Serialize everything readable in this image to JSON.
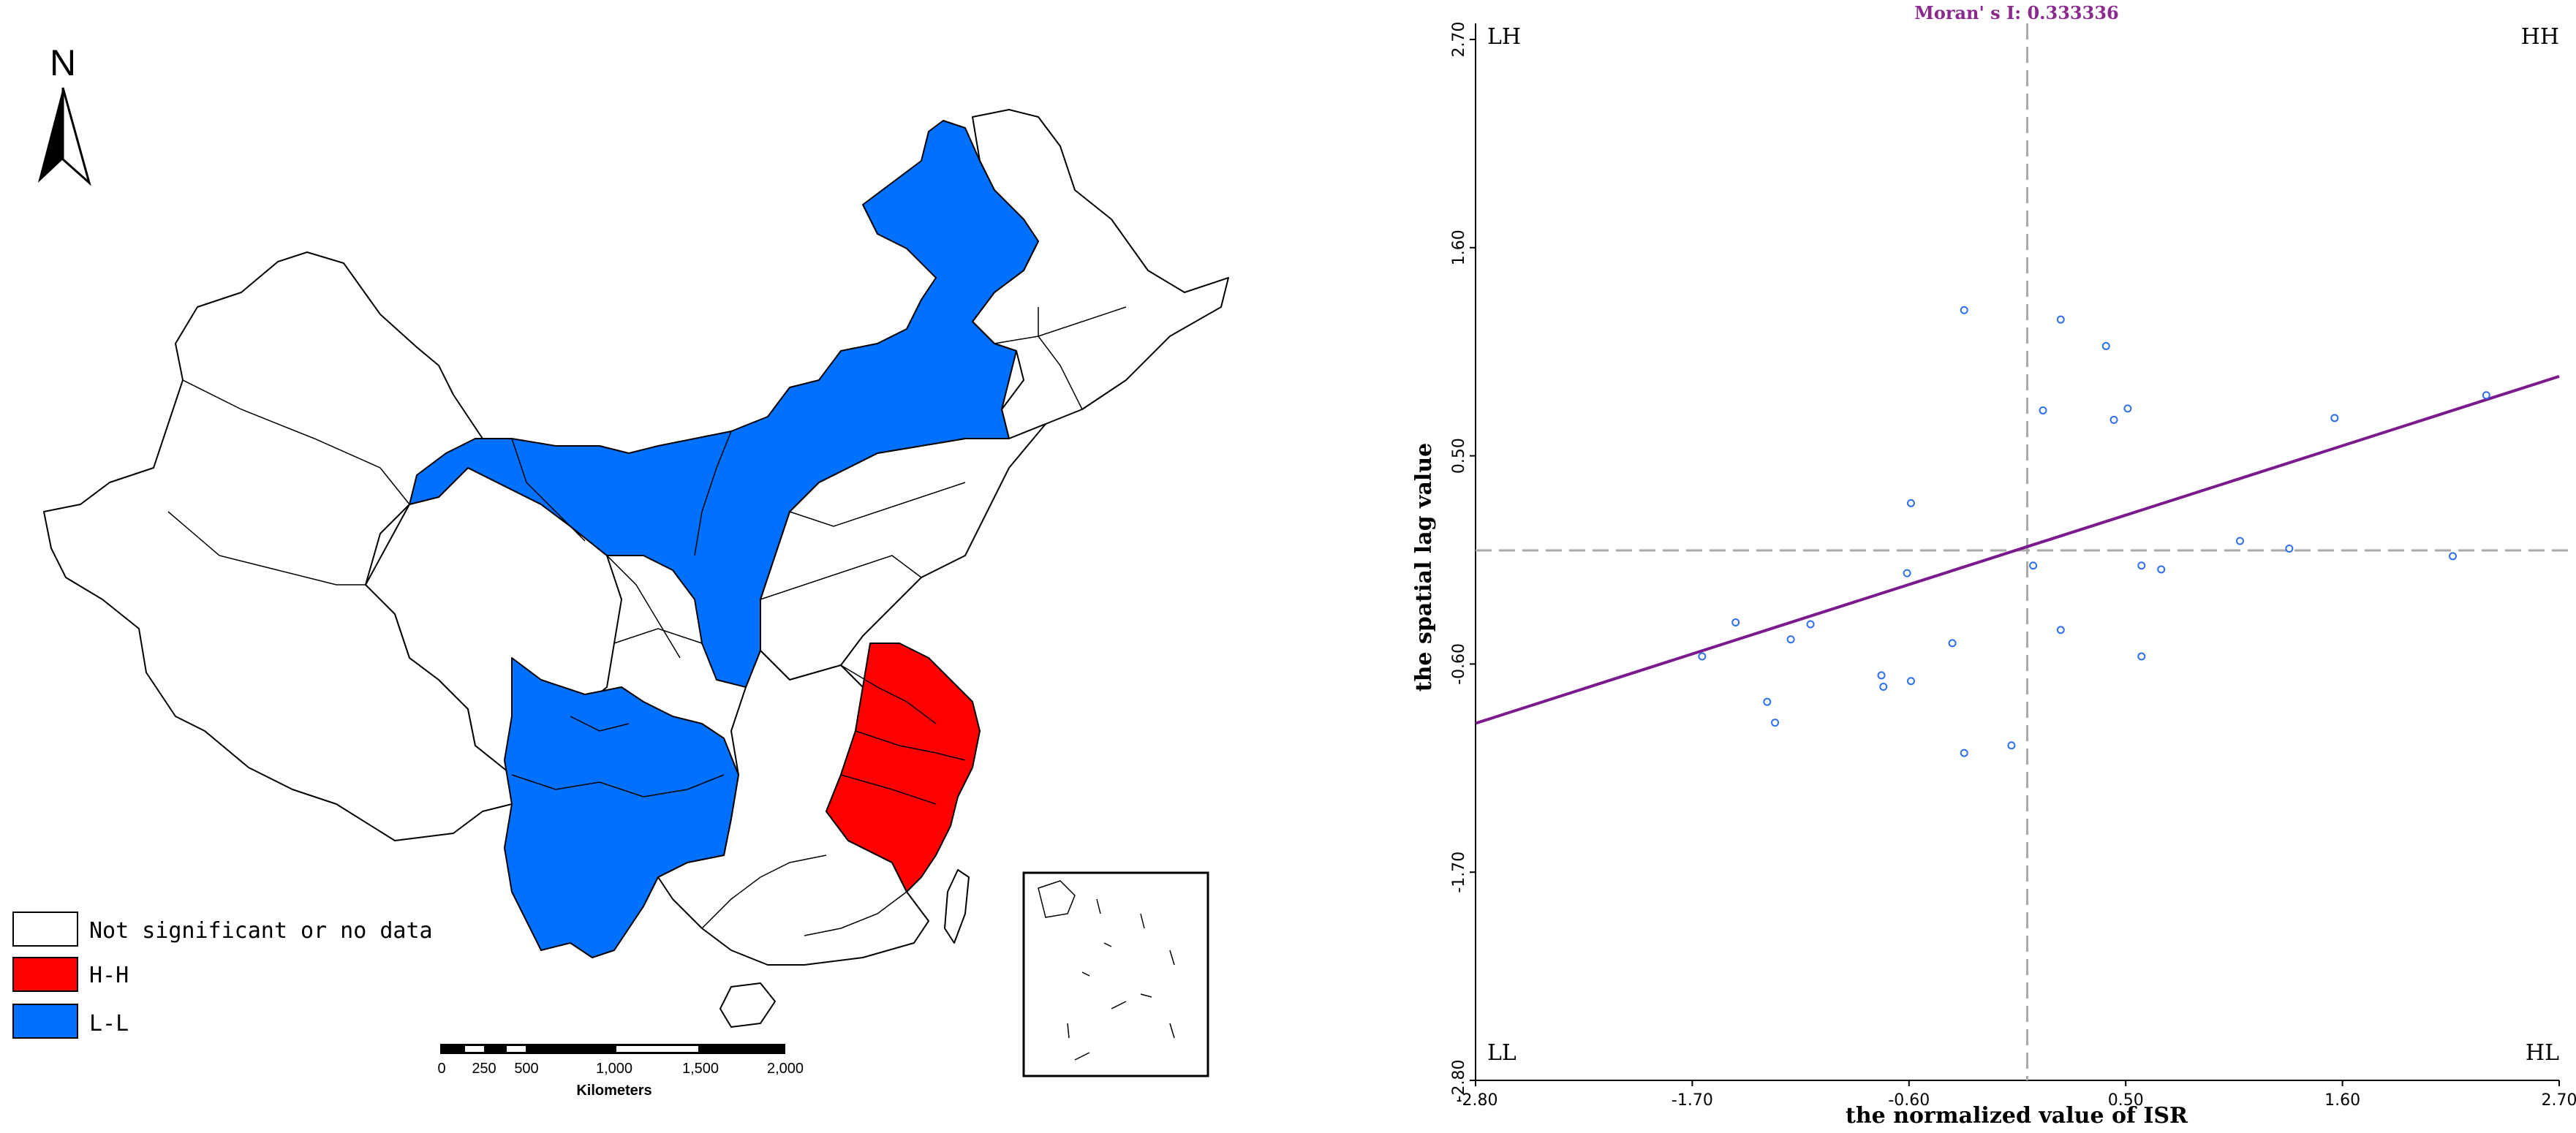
{
  "map": {
    "north_label": "N",
    "legend": [
      {
        "label": "Not significant or no data",
        "color": "#ffffff"
      },
      {
        "label": "H-H",
        "color": "#ff0000"
      },
      {
        "label": "L-L",
        "color": "#0070ff"
      }
    ],
    "scale_bar": {
      "ticks": [
        "0",
        "250",
        "500",
        "1,000",
        "1,500",
        "2,000"
      ],
      "unit": "Kilometers"
    }
  },
  "chart_data": {
    "type": "scatter",
    "title": "Moran' s I: 0.333336",
    "xlabel": "the normalized value of ISR",
    "ylabel": "the spatial lag value",
    "xlim": [
      -2.8,
      2.7
    ],
    "ylim": [
      -2.8,
      2.7
    ],
    "xticks": [
      "-2.80",
      "-1.70",
      "-0.60",
      "0.50",
      "1.60",
      "2.70"
    ],
    "yticks": [
      "-2.80",
      "-1.70",
      "-0.60",
      "0.50",
      "1.60",
      "2.70"
    ],
    "quadrants": {
      "top_left": "LH",
      "top_right": "HH",
      "bottom_left": "LL",
      "bottom_right": "HL"
    },
    "regression": {
      "slope": 0.333336,
      "intercept": 0.02
    },
    "points": [
      {
        "x": -0.32,
        "y": 1.27
      },
      {
        "x": 0.17,
        "y": 1.22
      },
      {
        "x": 0.4,
        "y": 1.08
      },
      {
        "x": 2.33,
        "y": 0.82
      },
      {
        "x": 0.08,
        "y": 0.74
      },
      {
        "x": 0.51,
        "y": 0.75
      },
      {
        "x": 0.44,
        "y": 0.69
      },
      {
        "x": 1.56,
        "y": 0.7
      },
      {
        "x": -0.59,
        "y": 0.25
      },
      {
        "x": 1.08,
        "y": 0.05
      },
      {
        "x": 1.33,
        "y": 0.01
      },
      {
        "x": 2.16,
        "y": -0.03
      },
      {
        "x": 0.03,
        "y": -0.08
      },
      {
        "x": 0.58,
        "y": -0.08
      },
      {
        "x": 0.68,
        "y": -0.1
      },
      {
        "x": -0.61,
        "y": -0.12
      },
      {
        "x": -1.48,
        "y": -0.38
      },
      {
        "x": -1.1,
        "y": -0.39
      },
      {
        "x": 0.17,
        "y": -0.42
      },
      {
        "x": -1.2,
        "y": -0.47
      },
      {
        "x": -0.38,
        "y": -0.49
      },
      {
        "x": -1.65,
        "y": -0.56
      },
      {
        "x": 0.58,
        "y": -0.56
      },
      {
        "x": -0.74,
        "y": -0.66
      },
      {
        "x": -0.59,
        "y": -0.69
      },
      {
        "x": -0.73,
        "y": -0.72
      },
      {
        "x": -1.32,
        "y": -0.8
      },
      {
        "x": -1.28,
        "y": -0.91
      },
      {
        "x": -0.08,
        "y": -1.03
      },
      {
        "x": -0.32,
        "y": -1.07
      }
    ],
    "point_color": "#2e6ff0",
    "line_color": "#7a1a8c",
    "title_color": "#8a2a8c"
  }
}
